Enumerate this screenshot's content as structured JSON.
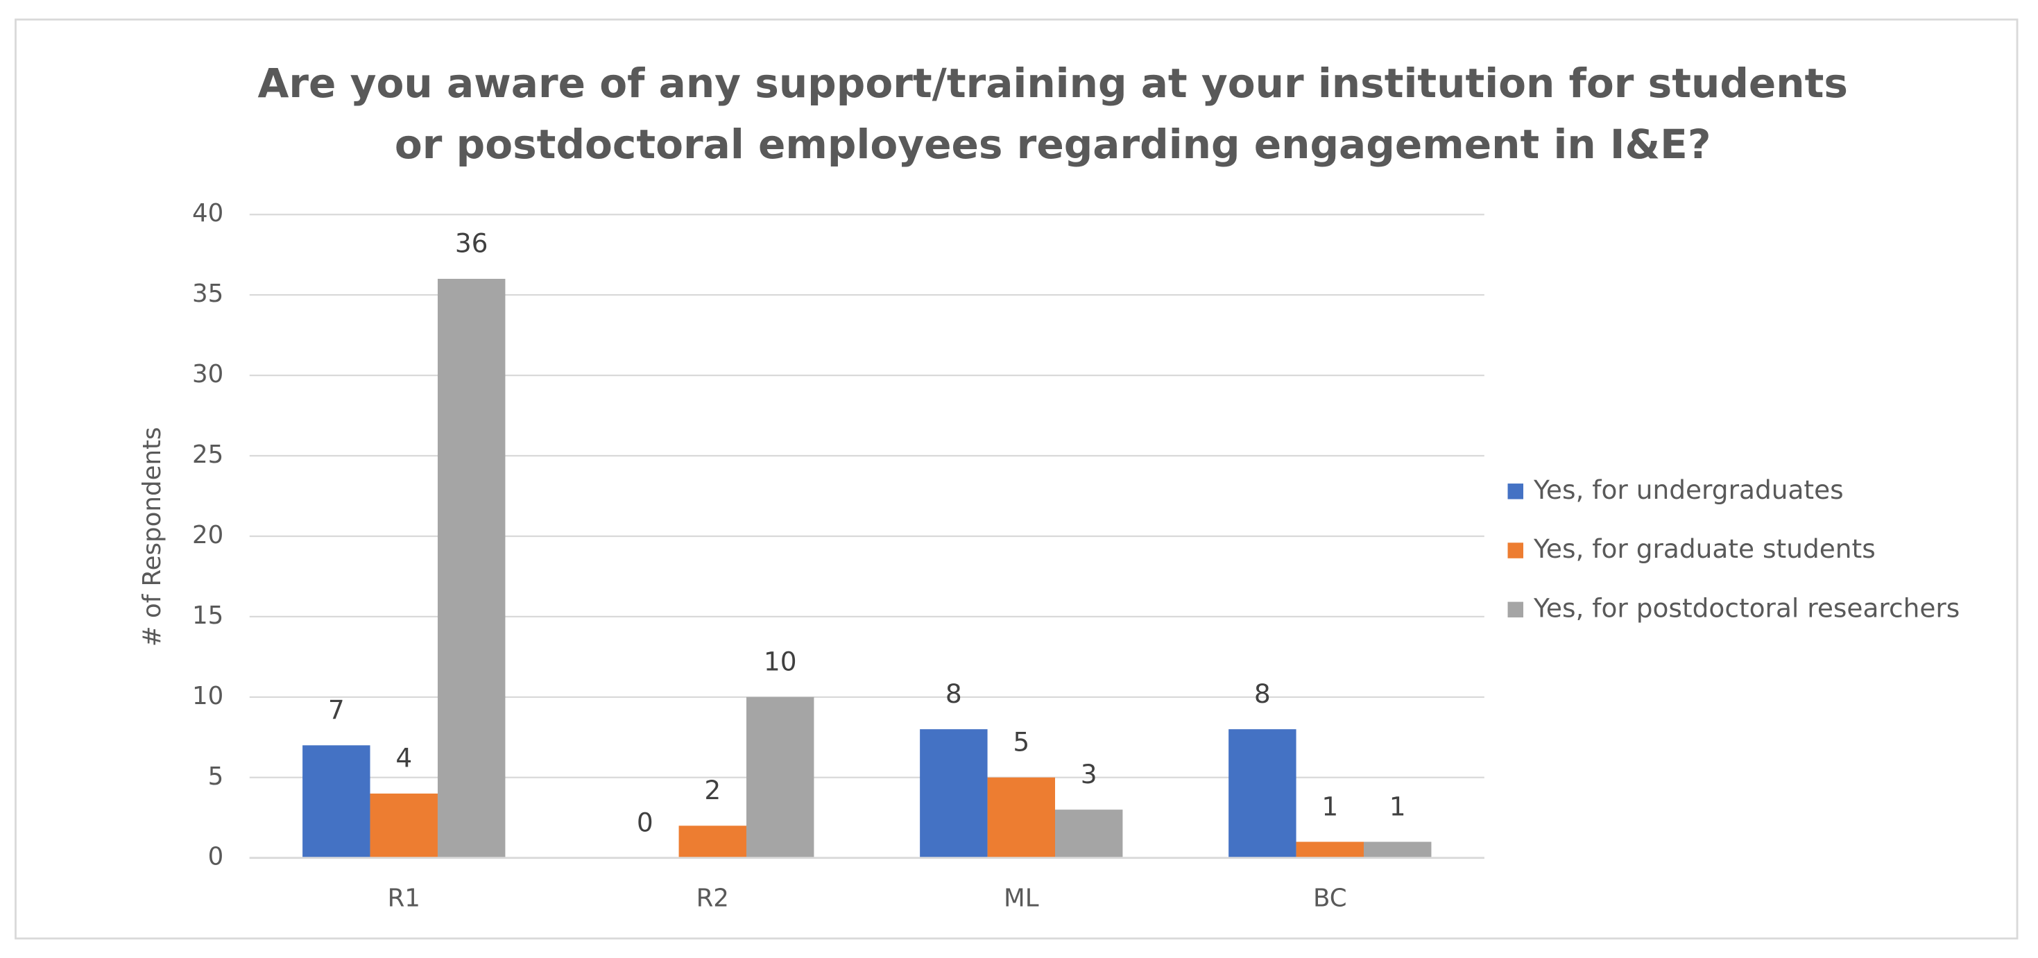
{
  "chart_data": {
    "type": "bar",
    "title": [
      "Are you aware of any support/training at your institution for students",
      "or postdoctoral employees regarding engagement in I&E?"
    ],
    "y_label": "# of Respondents",
    "categories": [
      "R1",
      "R2",
      "ML",
      "BC"
    ],
    "series": [
      {
        "name": "Yes, for undergraduates",
        "color": "#4472c4",
        "values": [
          7,
          0,
          8,
          8
        ]
      },
      {
        "name": "Yes, for graduate students",
        "color": "#ed7d31",
        "values": [
          4,
          2,
          5,
          1
        ]
      },
      {
        "name": "Yes, for postdoctoral researchers",
        "color": "#a5a5a5",
        "values": [
          36,
          10,
          3,
          1
        ]
      }
    ],
    "ylim": [
      0,
      40
    ],
    "yticks": [
      0,
      5,
      10,
      15,
      20,
      25,
      30,
      35,
      40
    ],
    "grid": true,
    "legend": "right"
  }
}
